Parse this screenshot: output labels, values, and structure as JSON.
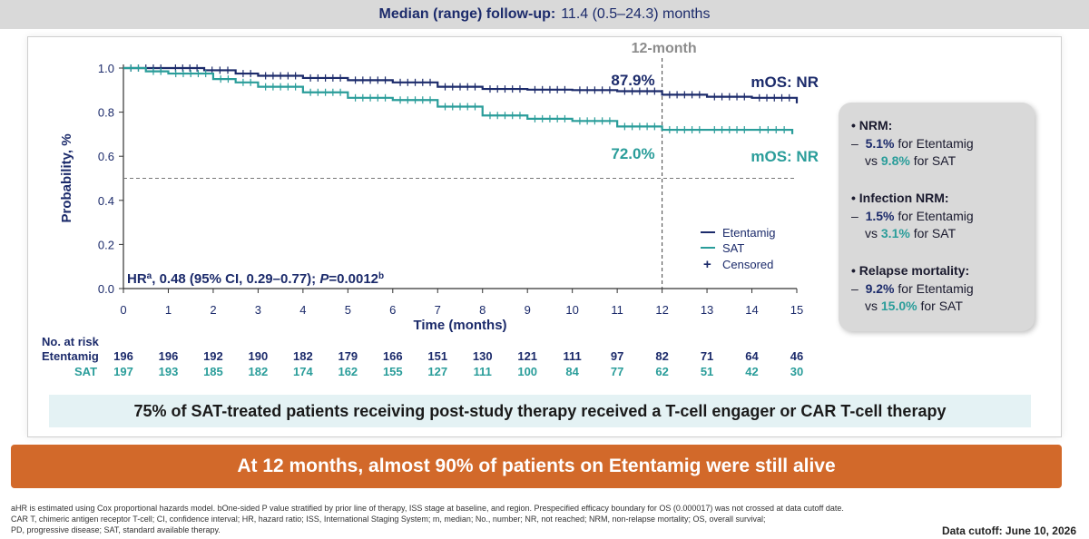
{
  "header": {
    "label": "Median (range) follow-up:",
    "value": "11.4 (0.5–24.3) months"
  },
  "chart_data": {
    "type": "line",
    "ylabel": "Probability, %",
    "xlabel": "Time (months)",
    "xlim": [
      0,
      15
    ],
    "ylim": [
      0,
      1.0
    ],
    "x_ticks": [
      "0",
      "1",
      "2",
      "3",
      "4",
      "5",
      "6",
      "7",
      "8",
      "9",
      "10",
      "11",
      "12",
      "13",
      "14",
      "15"
    ],
    "y_ticks": [
      "0.0",
      "0.2",
      "0.4",
      "0.6",
      "0.8",
      "1.0"
    ],
    "reference_line_y": 0.5,
    "reference_line_x": 12,
    "reference_label": "12-month",
    "hr_text": "HR",
    "hr_sup": "a",
    "hr_rest": ", 0.48 (95% CI, 0.29–0.77); ",
    "p_label": "P",
    "p_rest": "=0.0012",
    "p_sup": "b",
    "legend": [
      "Etentamig",
      "SAT",
      "Censored"
    ],
    "series": [
      {
        "name": "Etentamig",
        "color": "#1c2b6b",
        "x": [
          0,
          1,
          1.8,
          2.5,
          3,
          4,
          5,
          6,
          7,
          8,
          9,
          10,
          11,
          12,
          13,
          14,
          15
        ],
        "y": [
          1.0,
          1.0,
          0.99,
          0.975,
          0.965,
          0.955,
          0.945,
          0.935,
          0.915,
          0.905,
          0.902,
          0.9,
          0.895,
          0.879,
          0.87,
          0.865,
          0.84
        ],
        "label_value": "87.9%",
        "annotation": "mOS: NR"
      },
      {
        "name": "SAT",
        "color": "#2a9d9a",
        "x": [
          0,
          0.5,
          1,
          2,
          2.5,
          3,
          4,
          5,
          6,
          7,
          8,
          9,
          10,
          11,
          12,
          13,
          14,
          14.9
        ],
        "y": [
          1.0,
          0.985,
          0.975,
          0.95,
          0.935,
          0.915,
          0.89,
          0.865,
          0.855,
          0.825,
          0.785,
          0.77,
          0.76,
          0.735,
          0.72,
          0.72,
          0.72,
          0.7
        ],
        "label_value": "72.0%",
        "annotation": "mOS: NR"
      }
    ],
    "at_risk": {
      "title": "No. at risk",
      "rows": [
        {
          "name": "Etentamig",
          "values": [
            "196",
            "196",
            "192",
            "190",
            "182",
            "179",
            "166",
            "151",
            "130",
            "121",
            "111",
            "97",
            "82",
            "71",
            "64",
            "46"
          ]
        },
        {
          "name": "SAT",
          "values": [
            "197",
            "193",
            "185",
            "182",
            "174",
            "162",
            "155",
            "127",
            "111",
            "100",
            "84",
            "77",
            "62",
            "51",
            "42",
            "30"
          ]
        }
      ]
    }
  },
  "sidebox": {
    "items": [
      {
        "head": "NRM:",
        "line1_value": "5.1%",
        "line1_rest": " for Etentamig",
        "line2_pre": "vs ",
        "line2_value": "9.8%",
        "line2_rest": " for SAT"
      },
      {
        "head": "Infection NRM:",
        "line1_value": "1.5%",
        "line1_rest": " for Etentamig",
        "line2_pre": "vs ",
        "line2_value": "3.1%",
        "line2_rest": " for SAT"
      },
      {
        "head": "Relapse mortality:",
        "line1_value": "9.2%",
        "line1_rest": " for Etentamig",
        "line2_pre": "vs ",
        "line2_value": "15.0%",
        "line2_rest": " for SAT"
      }
    ]
  },
  "banners": {
    "teal": "75% of SAT-treated patients receiving post-study therapy received a T-cell engager or CAR T-cell therapy",
    "orange": "At 12 months, almost 90% of patients on Etentamig were still alive"
  },
  "footnotes": {
    "line1": "aHR is estimated using Cox proportional hazards model. bOne-sided P value stratified by prior line of therapy, ISS stage at baseline, and region. Prespecified efficacy boundary for OS (0.000017) was not crossed at data cutoff date.",
    "line2": "CAR T, chimeric antigen receptor T-cell; CI, confidence interval; HR, hazard ratio; ISS, International Staging System; m, median; No., number; NR, not reached; NRM, non-relapse mortality; OS, overall survival;",
    "line3": "PD, progressive disease; SAT, standard available therapy."
  },
  "cutoff": "Data cutoff: June 10, 2026"
}
